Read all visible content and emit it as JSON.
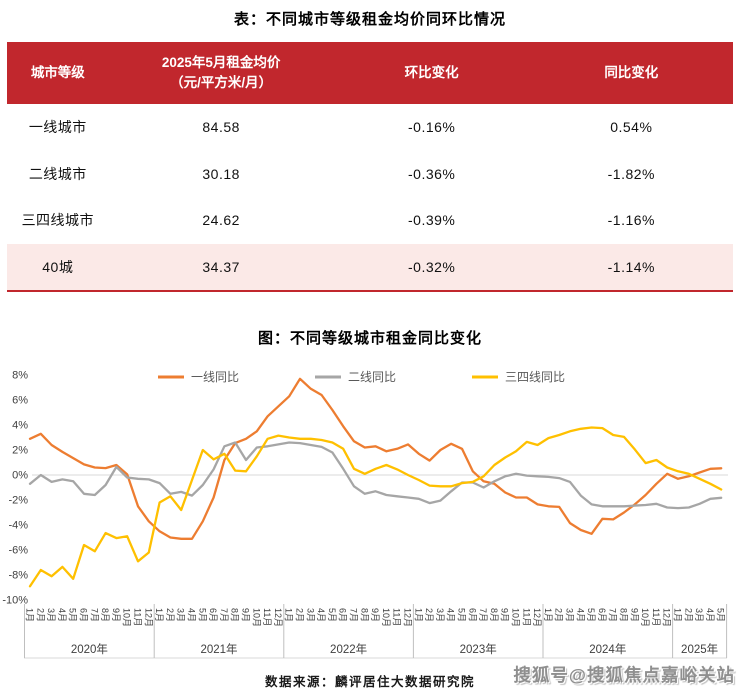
{
  "table_section": {
    "title": "表：不同城市等级租金均价同环比情况",
    "columns": [
      {
        "label": "城市等级",
        "sub": ""
      },
      {
        "label": "2025年5月租金均价",
        "sub": "（元/平方米/月）"
      },
      {
        "label": "环比变化",
        "sub": ""
      },
      {
        "label": "同比变化",
        "sub": ""
      }
    ],
    "rows": [
      {
        "cells": [
          "一线城市",
          "84.58",
          "-0.16%",
          "0.54%"
        ],
        "highlight": false
      },
      {
        "cells": [
          "二线城市",
          "30.18",
          "-0.36%",
          "-1.82%"
        ],
        "highlight": false
      },
      {
        "cells": [
          "三四线城市",
          "24.62",
          "-0.39%",
          "-1.16%"
        ],
        "highlight": false
      },
      {
        "cells": [
          "40城",
          "34.37",
          "-0.32%",
          "-1.14%"
        ],
        "highlight": true
      }
    ],
    "colors": {
      "header_bg": "#C1272D",
      "header_text": "#FFFFFF",
      "highlight_bg": "#FBE9E7",
      "border_red": "#C1272D"
    }
  },
  "chart_data": {
    "type": "line",
    "title": "图：不同等级城市租金同比变化",
    "ylim": [
      -10,
      8
    ],
    "y_ticks": [
      8,
      6,
      4,
      2,
      0,
      -2,
      -4,
      -6,
      -8,
      -10
    ],
    "y_tick_suffix": "%",
    "grid": "zero-line-only",
    "legend_position": "top",
    "zero_line_color": "#D9D9D9",
    "axis_color": "#BFBFBF",
    "tick_label_color": "#404040",
    "x_month_labels": [
      "1月",
      "2月",
      "3月",
      "4月",
      "5月",
      "6月",
      "7月",
      "8月",
      "9月",
      "10月",
      "11月",
      "12月",
      "1月",
      "2月",
      "3月",
      "4月",
      "5月",
      "6月",
      "7月",
      "8月",
      "9月",
      "10月",
      "11月",
      "12月",
      "1月",
      "2月",
      "3月",
      "4月",
      "5月",
      "6月",
      "7月",
      "8月",
      "9月",
      "10月",
      "11月",
      "12月",
      "1月",
      "2月",
      "3月",
      "4月",
      "5月",
      "6月",
      "7月",
      "8月",
      "9月",
      "10月",
      "11月",
      "12月",
      "1月",
      "2月",
      "3月",
      "4月",
      "5月",
      "6月",
      "7月",
      "8月",
      "9月",
      "10月",
      "11月",
      "12月",
      "1月",
      "2月",
      "3月",
      "4月",
      "5月"
    ],
    "year_groups": [
      {
        "label": "2020年",
        "months": 12
      },
      {
        "label": "2021年",
        "months": 12
      },
      {
        "label": "2022年",
        "months": 12
      },
      {
        "label": "2023年",
        "months": 12
      },
      {
        "label": "2024年",
        "months": 12
      },
      {
        "label": "2025年",
        "months": 5
      }
    ],
    "series": [
      {
        "name": "一线同比",
        "color": "#ED7D31",
        "values": [
          2.9,
          3.3,
          2.4,
          1.85,
          1.35,
          0.85,
          0.6,
          0.55,
          0.8,
          0.05,
          -2.5,
          -3.7,
          -4.5,
          -5.0,
          -5.1,
          -5.1,
          -3.7,
          -1.8,
          1.2,
          2.55,
          2.9,
          3.5,
          4.7,
          5.5,
          6.3,
          7.7,
          6.9,
          6.4,
          5.2,
          3.9,
          2.7,
          2.2,
          2.3,
          1.9,
          2.1,
          2.45,
          1.7,
          1.15,
          2.0,
          2.5,
          2.1,
          0.3,
          -0.5,
          -0.7,
          -1.4,
          -1.8,
          -1.8,
          -2.35,
          -2.5,
          -2.55,
          -3.85,
          -4.4,
          -4.7,
          -3.5,
          -3.55,
          -3.0,
          -2.35,
          -1.6,
          -0.7,
          0.1,
          -0.3,
          -0.1,
          0.2,
          0.5,
          0.54
        ]
      },
      {
        "name": "二线同比",
        "color": "#A6A6A6",
        "values": [
          -0.7,
          0.0,
          -0.55,
          -0.35,
          -0.5,
          -1.5,
          -1.6,
          -0.8,
          0.65,
          -0.2,
          -0.3,
          -0.35,
          -0.65,
          -1.5,
          -1.35,
          -1.65,
          -0.8,
          0.45,
          2.3,
          2.6,
          1.2,
          2.2,
          2.3,
          2.45,
          2.6,
          2.55,
          2.4,
          2.25,
          1.8,
          0.5,
          -0.9,
          -1.5,
          -1.3,
          -1.6,
          -1.7,
          -1.8,
          -1.9,
          -2.25,
          -2.05,
          -1.3,
          -0.6,
          -0.6,
          -1.0,
          -0.5,
          -0.1,
          0.1,
          -0.05,
          -0.1,
          -0.15,
          -0.25,
          -0.55,
          -1.65,
          -2.35,
          -2.5,
          -2.5,
          -2.5,
          -2.45,
          -2.4,
          -2.3,
          -2.6,
          -2.65,
          -2.6,
          -2.3,
          -1.9,
          -1.82
        ]
      },
      {
        "name": "三四线同比",
        "color": "#FFC000",
        "values": [
          -8.9,
          -7.6,
          -8.1,
          -7.35,
          -8.3,
          -5.6,
          -6.1,
          -4.65,
          -5.05,
          -4.9,
          -6.9,
          -6.2,
          -2.2,
          -1.7,
          -2.8,
          -0.4,
          2.0,
          1.25,
          1.7,
          0.35,
          0.3,
          1.5,
          2.9,
          3.15,
          3.0,
          2.9,
          2.9,
          2.8,
          2.6,
          2.1,
          0.5,
          0.1,
          0.5,
          0.8,
          0.45,
          0.0,
          -0.4,
          -0.85,
          -0.9,
          -0.9,
          -0.65,
          -0.55,
          -0.1,
          0.8,
          1.4,
          1.9,
          2.65,
          2.4,
          2.95,
          3.2,
          3.5,
          3.7,
          3.8,
          3.75,
          3.2,
          3.05,
          2.05,
          0.95,
          1.2,
          0.6,
          0.3,
          0.1,
          -0.3,
          -0.7,
          -1.16
        ]
      }
    ]
  },
  "footer": {
    "source": "数据来源：麟评居住大数据研究院",
    "watermark": "搜狐号@搜狐焦点嘉峪关站"
  }
}
